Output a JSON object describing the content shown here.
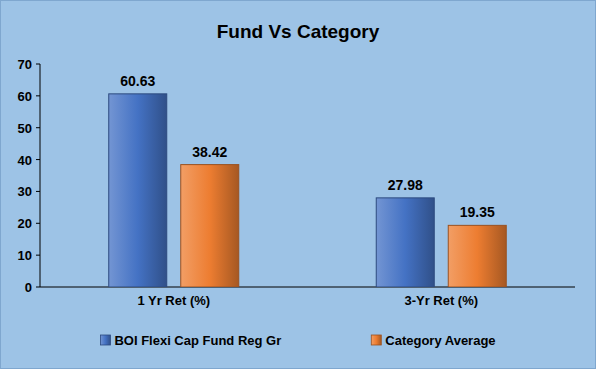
{
  "chart_data": {
    "type": "bar",
    "title": "Fund Vs Category",
    "categories": [
      "1 Yr Ret (%)",
      "3-Yr Ret (%)"
    ],
    "series": [
      {
        "name": "BOI Flexi Cap Fund Reg Gr",
        "color": "#4472c4",
        "values": [
          60.63,
          27.98
        ]
      },
      {
        "name": "Category Average",
        "color": "#ed7d31",
        "values": [
          38.42,
          19.35
        ]
      }
    ],
    "ylim": [
      0,
      70
    ],
    "yticks": [
      0,
      10,
      20,
      30,
      40,
      50,
      60,
      70
    ],
    "grid": false,
    "legend": "bottom",
    "data_labels": true
  }
}
